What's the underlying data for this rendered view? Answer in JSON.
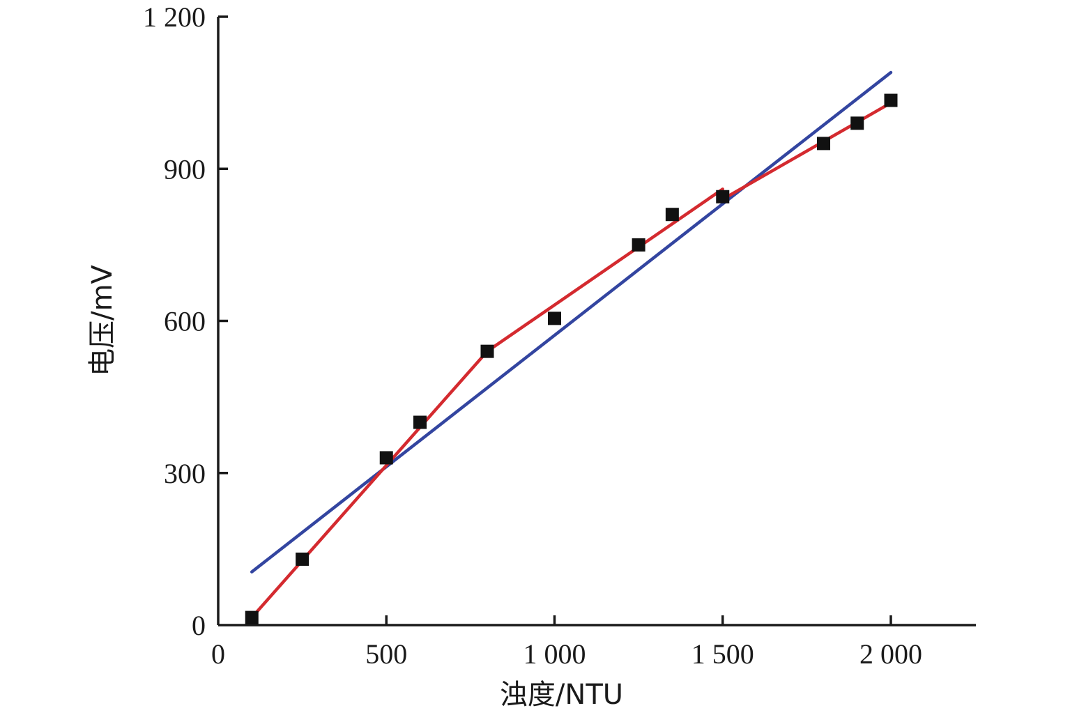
{
  "chart_data": {
    "type": "scatter",
    "xlabel": "浊度/NTU",
    "ylabel": "电压/mV",
    "xlim": [
      0,
      2250
    ],
    "ylim": [
      0,
      1200
    ],
    "xticks": [
      0,
      500,
      1000,
      1500,
      2000
    ],
    "xtick_labels": [
      "0",
      "500",
      "1 000",
      "1 500",
      "2 000"
    ],
    "yticks": [
      0,
      300,
      600,
      900,
      1200
    ],
    "ytick_labels": [
      "0",
      "300",
      "600",
      "900",
      "1 200"
    ],
    "grid": false,
    "legend": "none",
    "points": {
      "color": "#111111",
      "x": [
        100,
        250,
        500,
        600,
        800,
        1000,
        1250,
        1350,
        1500,
        1800,
        1900,
        2000
      ],
      "y": [
        15,
        130,
        330,
        400,
        540,
        605,
        750,
        810,
        845,
        950,
        990,
        1035
      ]
    },
    "lines": [
      {
        "color": "#3345a0",
        "x": [
          100,
          2000
        ],
        "y": [
          105,
          1090
        ]
      },
      {
        "color": "#d42a2f",
        "x": [
          100,
          800
        ],
        "y": [
          15,
          540
        ]
      },
      {
        "color": "#d42a2f",
        "x": [
          800,
          1500
        ],
        "y": [
          540,
          860
        ]
      },
      {
        "color": "#d42a2f",
        "x": [
          1500,
          2000
        ],
        "y": [
          840,
          1030
        ]
      }
    ]
  }
}
